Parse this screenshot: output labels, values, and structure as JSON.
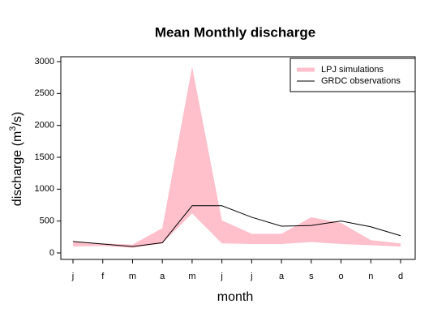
{
  "chart_data": {
    "type": "band-line",
    "title": "Mean Monthly discharge",
    "xlabel": "month",
    "ylabel": [
      "discharge (m",
      "3",
      "/s)"
    ],
    "categories": [
      "j",
      "f",
      "m",
      "a",
      "m",
      "j",
      "j",
      "a",
      "s",
      "o",
      "n",
      "d"
    ],
    "series": [
      {
        "name": "LPJ simulations",
        "color": "#ffc0cb",
        "values": [
          180,
          150,
          130,
          390,
          2920,
          510,
          300,
          300,
          560,
          470,
          200,
          150
        ],
        "lower": [
          100,
          110,
          80,
          150,
          620,
          150,
          140,
          140,
          170,
          140,
          120,
          100
        ]
      },
      {
        "name": "GRDC observations",
        "color": "#000000",
        "values": [
          180,
          140,
          100,
          160,
          740,
          740,
          560,
          420,
          430,
          500,
          410,
          270
        ]
      }
    ],
    "ylim": [
      0,
      3000
    ],
    "yticks": [
      0,
      500,
      1000,
      1500,
      2000,
      2500,
      3000
    ],
    "legend": "topright"
  }
}
